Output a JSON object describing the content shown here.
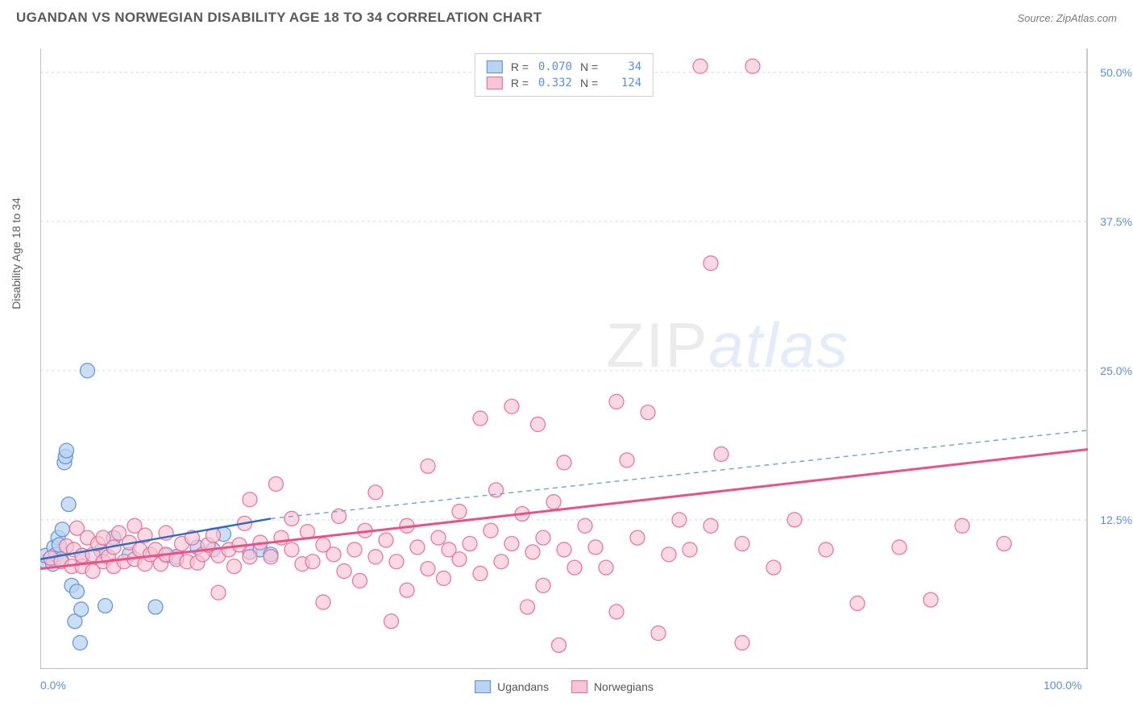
{
  "header": {
    "title": "UGANDAN VS NORWEGIAN DISABILITY AGE 18 TO 34 CORRELATION CHART",
    "source": "Source: ZipAtlas.com"
  },
  "watermark": {
    "zip": "ZIP",
    "atlas": "atlas"
  },
  "chart": {
    "type": "scatter",
    "background_color": "#ffffff",
    "grid_color": "#d8d8d8",
    "axis_color": "#9a9a9a",
    "ylabel": "Disability Age 18 to 34",
    "label_fontsize": 14,
    "label_color": "#5a5a5a",
    "tick_color": "#5b8fd6",
    "xlim": [
      0,
      100
    ],
    "ylim": [
      0,
      52
    ],
    "x_ticks": [
      {
        "pos": 0,
        "label": "0.0%"
      },
      {
        "pos": 100,
        "label": "100.0%"
      }
    ],
    "y_ticks": [
      {
        "pos": 12.5,
        "label": "12.5%"
      },
      {
        "pos": 25.0,
        "label": "25.0%"
      },
      {
        "pos": 37.5,
        "label": "37.5%"
      },
      {
        "pos": 50.0,
        "label": "50.0%"
      }
    ],
    "series": [
      {
        "name": "Ugandans",
        "marker_fill": "#b9d3f0",
        "marker_stroke": "#5b8fd6",
        "marker_radius": 9,
        "marker_opacity": 0.75,
        "R": "0.070",
        "N": "34",
        "trend": {
          "x1": 0,
          "y1": 9.2,
          "x2": 22,
          "y2": 12.6,
          "x2_ext": 100,
          "y2_ext": 20.0,
          "solid_color": "#2f6bc0",
          "dash_color": "#6fa0d8",
          "width": 2.4
        },
        "points": [
          [
            0.5,
            9.0
          ],
          [
            0.5,
            9.5
          ],
          [
            1.0,
            9.3
          ],
          [
            1.2,
            8.8
          ],
          [
            1.3,
            10.2
          ],
          [
            1.5,
            9.6
          ],
          [
            1.7,
            11.0
          ],
          [
            1.8,
            10.4
          ],
          [
            2.0,
            9.2
          ],
          [
            2.1,
            11.7
          ],
          [
            2.3,
            17.3
          ],
          [
            2.4,
            17.8
          ],
          [
            2.5,
            18.3
          ],
          [
            2.7,
            13.8
          ],
          [
            3.0,
            7.0
          ],
          [
            3.3,
            4.0
          ],
          [
            3.5,
            6.5
          ],
          [
            3.8,
            2.2
          ],
          [
            3.9,
            5.0
          ],
          [
            4.0,
            9.5
          ],
          [
            4.5,
            25.0
          ],
          [
            5.8,
            9.9
          ],
          [
            6.2,
            5.3
          ],
          [
            7.0,
            11.0
          ],
          [
            8.5,
            9.6
          ],
          [
            11.0,
            5.2
          ],
          [
            12.0,
            9.5
          ],
          [
            13.0,
            9.4
          ],
          [
            15.0,
            10.2
          ],
          [
            16.5,
            10.0
          ],
          [
            17.5,
            11.3
          ],
          [
            20.0,
            9.8
          ],
          [
            21.0,
            10.0
          ],
          [
            22.0,
            9.6
          ]
        ]
      },
      {
        "name": "Norwegians",
        "marker_fill": "#f7c5d4",
        "marker_stroke": "#e86a98",
        "marker_radius": 9,
        "marker_opacity": 0.65,
        "R": "0.332",
        "N": "124",
        "trend": {
          "x1": 0,
          "y1": 8.4,
          "x2": 100,
          "y2": 18.4,
          "solid_color": "#e8528a",
          "width": 3.0
        },
        "points": [
          [
            1,
            9.3
          ],
          [
            2,
            9.0
          ],
          [
            2.5,
            10.3
          ],
          [
            3,
            8.6
          ],
          [
            3.2,
            10.0
          ],
          [
            3.5,
            11.8
          ],
          [
            4,
            8.6
          ],
          [
            4,
            9.5
          ],
          [
            4.5,
            11.0
          ],
          [
            5,
            8.2
          ],
          [
            5,
            9.6
          ],
          [
            5.5,
            10.5
          ],
          [
            6,
            9.0
          ],
          [
            6,
            11.0
          ],
          [
            6.5,
            9.4
          ],
          [
            7,
            8.6
          ],
          [
            7,
            10.2
          ],
          [
            7.5,
            11.4
          ],
          [
            8,
            9.0
          ],
          [
            8.5,
            10.6
          ],
          [
            9,
            9.2
          ],
          [
            9,
            12.0
          ],
          [
            9.5,
            10.0
          ],
          [
            10,
            8.8
          ],
          [
            10,
            11.2
          ],
          [
            10.5,
            9.6
          ],
          [
            11,
            10.0
          ],
          [
            11.5,
            8.8
          ],
          [
            12,
            9.6
          ],
          [
            12,
            11.4
          ],
          [
            13,
            9.2
          ],
          [
            13.5,
            10.5
          ],
          [
            14,
            9.0
          ],
          [
            14.5,
            11.0
          ],
          [
            15,
            8.9
          ],
          [
            15.5,
            9.6
          ],
          [
            16,
            10.4
          ],
          [
            16.5,
            11.2
          ],
          [
            17,
            6.4
          ],
          [
            17,
            9.5
          ],
          [
            18,
            10.0
          ],
          [
            18.5,
            8.6
          ],
          [
            19,
            10.4
          ],
          [
            19.5,
            12.2
          ],
          [
            20,
            9.4
          ],
          [
            20,
            14.2
          ],
          [
            21,
            10.6
          ],
          [
            22,
            9.4
          ],
          [
            22.5,
            15.5
          ],
          [
            23,
            11.0
          ],
          [
            24,
            10.0
          ],
          [
            24,
            12.6
          ],
          [
            25,
            8.8
          ],
          [
            25.5,
            11.5
          ],
          [
            26,
            9.0
          ],
          [
            27,
            5.6
          ],
          [
            27,
            10.4
          ],
          [
            28,
            9.6
          ],
          [
            28.5,
            12.8
          ],
          [
            29,
            8.2
          ],
          [
            30,
            10.0
          ],
          [
            30.5,
            7.4
          ],
          [
            31,
            11.6
          ],
          [
            32,
            9.4
          ],
          [
            32,
            14.8
          ],
          [
            33,
            10.8
          ],
          [
            33.5,
            4.0
          ],
          [
            34,
            9.0
          ],
          [
            35,
            12.0
          ],
          [
            35,
            6.6
          ],
          [
            36,
            10.2
          ],
          [
            37,
            8.4
          ],
          [
            37,
            17.0
          ],
          [
            38,
            11.0
          ],
          [
            38.5,
            7.6
          ],
          [
            39,
            10.0
          ],
          [
            40,
            9.2
          ],
          [
            40,
            13.2
          ],
          [
            41,
            10.5
          ],
          [
            42,
            21.0
          ],
          [
            42,
            8.0
          ],
          [
            43,
            11.6
          ],
          [
            43.5,
            15.0
          ],
          [
            44,
            9.0
          ],
          [
            45,
            22.0
          ],
          [
            45,
            10.5
          ],
          [
            46,
            13.0
          ],
          [
            46.5,
            5.2
          ],
          [
            47,
            9.8
          ],
          [
            47.5,
            20.5
          ],
          [
            48,
            11.0
          ],
          [
            48,
            7.0
          ],
          [
            49,
            14.0
          ],
          [
            49.5,
            2.0
          ],
          [
            50,
            10.0
          ],
          [
            50,
            17.3
          ],
          [
            51,
            8.5
          ],
          [
            52,
            12.0
          ],
          [
            53,
            10.2
          ],
          [
            54,
            8.5
          ],
          [
            55,
            22.4
          ],
          [
            55,
            4.8
          ],
          [
            56,
            17.5
          ],
          [
            57,
            11.0
          ],
          [
            58,
            21.5
          ],
          [
            59,
            3.0
          ],
          [
            60,
            9.6
          ],
          [
            61,
            12.5
          ],
          [
            62,
            10.0
          ],
          [
            63,
            50.5
          ],
          [
            64,
            34.0
          ],
          [
            64,
            12.0
          ],
          [
            65,
            18.0
          ],
          [
            67,
            10.5
          ],
          [
            67,
            2.2
          ],
          [
            68,
            50.5
          ],
          [
            70,
            8.5
          ],
          [
            72,
            12.5
          ],
          [
            75,
            10.0
          ],
          [
            78,
            5.5
          ],
          [
            82,
            10.2
          ],
          [
            85,
            5.8
          ],
          [
            88,
            12.0
          ],
          [
            92,
            10.5
          ]
        ]
      }
    ],
    "legend_top": {
      "r_label": "R =",
      "n_label": "N ="
    },
    "legend_bottom": {
      "items": [
        "Ugandans",
        "Norwegians"
      ]
    }
  }
}
